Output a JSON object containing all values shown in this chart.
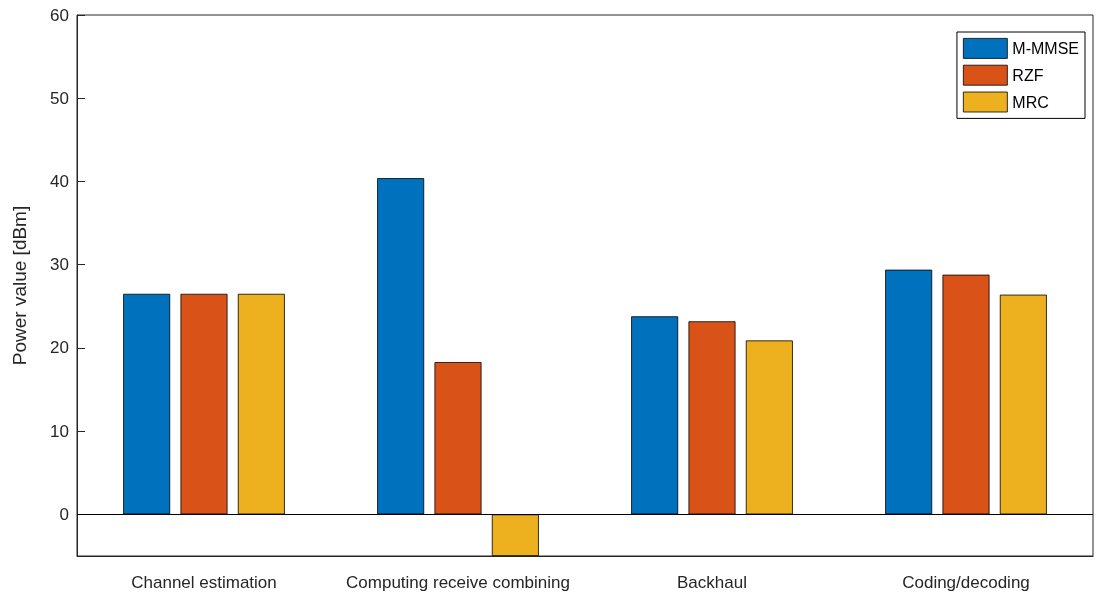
{
  "chart_data": {
    "type": "bar",
    "ylabel": "Power value [dBm]",
    "categories": [
      "Channel estimation",
      "Computing receive combining",
      "Backhaul",
      "Coding/decoding"
    ],
    "series": [
      {
        "name": "M-MMSE",
        "color": "#0072bd",
        "values": [
          26.5,
          40.4,
          23.8,
          29.4
        ]
      },
      {
        "name": "RZF",
        "color": "#d95319",
        "values": [
          26.5,
          18.3,
          23.2,
          28.8
        ]
      },
      {
        "name": "MRC",
        "color": "#edb120",
        "values": [
          26.5,
          -5,
          20.9,
          26.4
        ]
      }
    ],
    "ylim": [
      -5,
      60
    ],
    "yticks": [
      0,
      10,
      20,
      30,
      40,
      50,
      60
    ],
    "grid": false,
    "legend": "top right",
    "ref_lines": [
      {
        "axis": "y",
        "value": 0,
        "color": "#000000"
      }
    ]
  }
}
